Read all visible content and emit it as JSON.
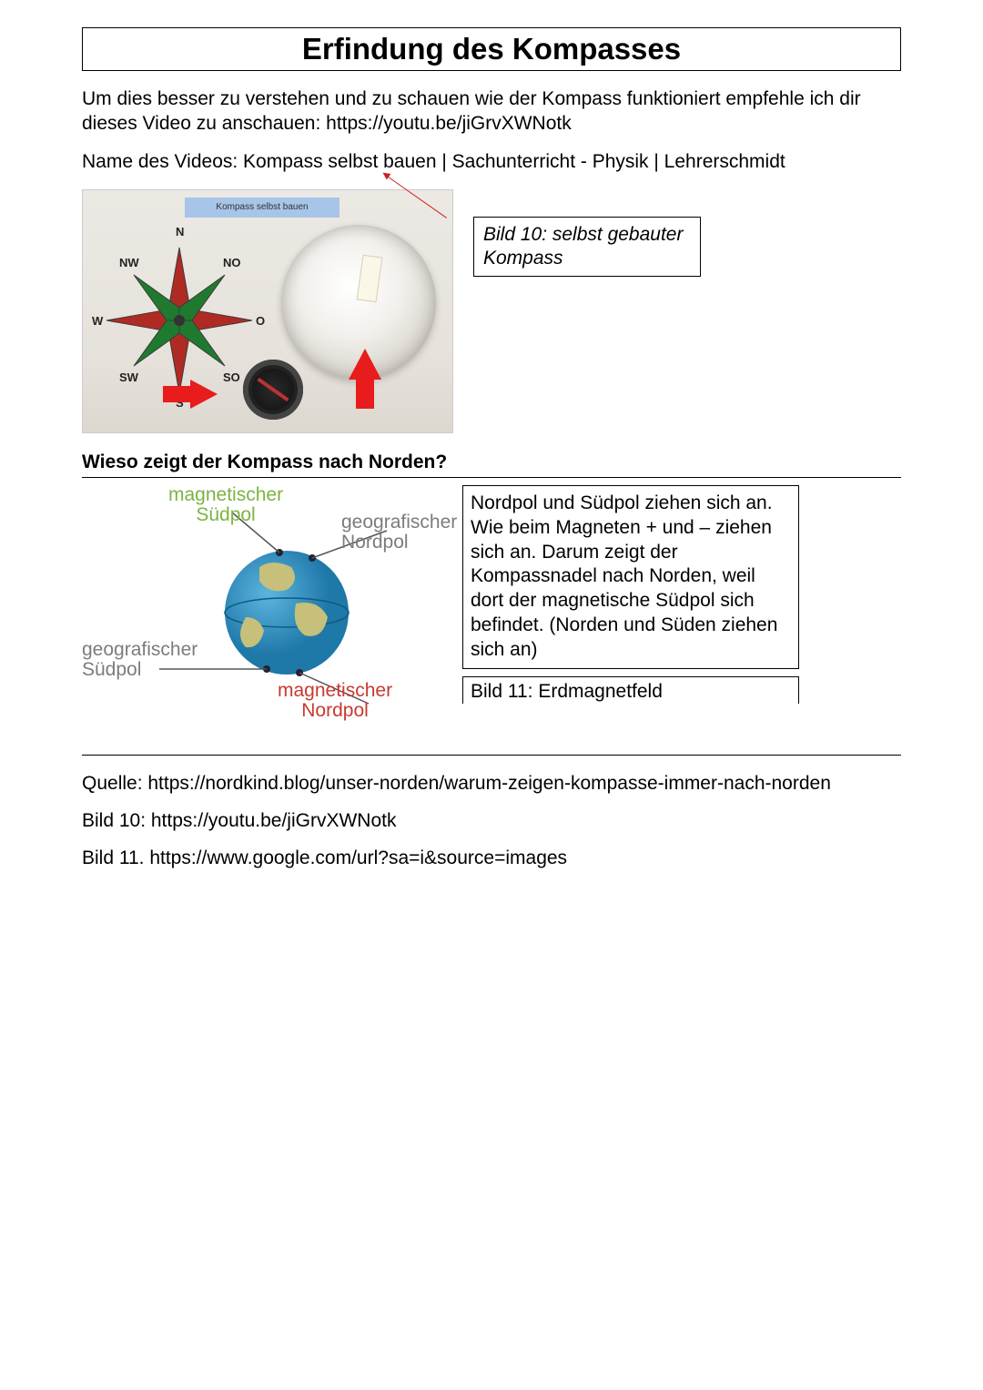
{
  "title": "Erfindung des Kompasses",
  "intro": "Um dies besser zu verstehen und zu schauen wie der Kompass funktioniert empfehle ich dir dieses Video zu anschauen: https://youtu.be/jiGrvXWNotk",
  "video_name": "Name des Videos: Kompass selbst bauen | Sachunterricht - Physik | Lehrerschmidt",
  "fig1": {
    "banner": "Kompass selbst bauen",
    "caption": "Bild 10: selbst gebauter Kompass",
    "rose": {
      "labels": {
        "N": "N",
        "NO": "NO",
        "O": "O",
        "SO": "SO",
        "S": "S",
        "SW": "SW",
        "W": "W",
        "NW": "NW"
      },
      "colors": {
        "primary": "#b02a24",
        "secondary": "#1f7a2f",
        "outline": "#3a3a3a"
      }
    },
    "arrow_color": "#e81c1c"
  },
  "subheading": "Wieso zeigt der Kompass nach Norden?",
  "fig2": {
    "labels": {
      "mag_sud": "magnetischer Südpol",
      "geo_nord": "geografischer Nordpol",
      "geo_sud": "geografischer Südpol",
      "mag_nord": "magnetischer Nordpol"
    },
    "colors": {
      "green": "#7cb342",
      "red": "#c73a2f",
      "grey": "#7c7c7c",
      "ocean": "#2f93c7",
      "land": "#c6c07a",
      "line": "#555555"
    }
  },
  "explain": "Nordpol und Südpol ziehen sich an. Wie beim Magneten + und – ziehen sich an. Darum zeigt der Kompassnadel nach Norden, weil dort der magnetische Südpol sich befindet. (Norden und Süden ziehen sich an)",
  "caption11": "Bild 11: Erdmagnetfeld",
  "sources": {
    "quelle": "Quelle: https://nordkind.blog/unser-norden/warum-zeigen-kompasse-immer-nach-norden",
    "bild10": "Bild 10: https://youtu.be/jiGrvXWNotk",
    "bild11": "Bild 11. https://www.google.com/url?sa=i&source=images"
  }
}
